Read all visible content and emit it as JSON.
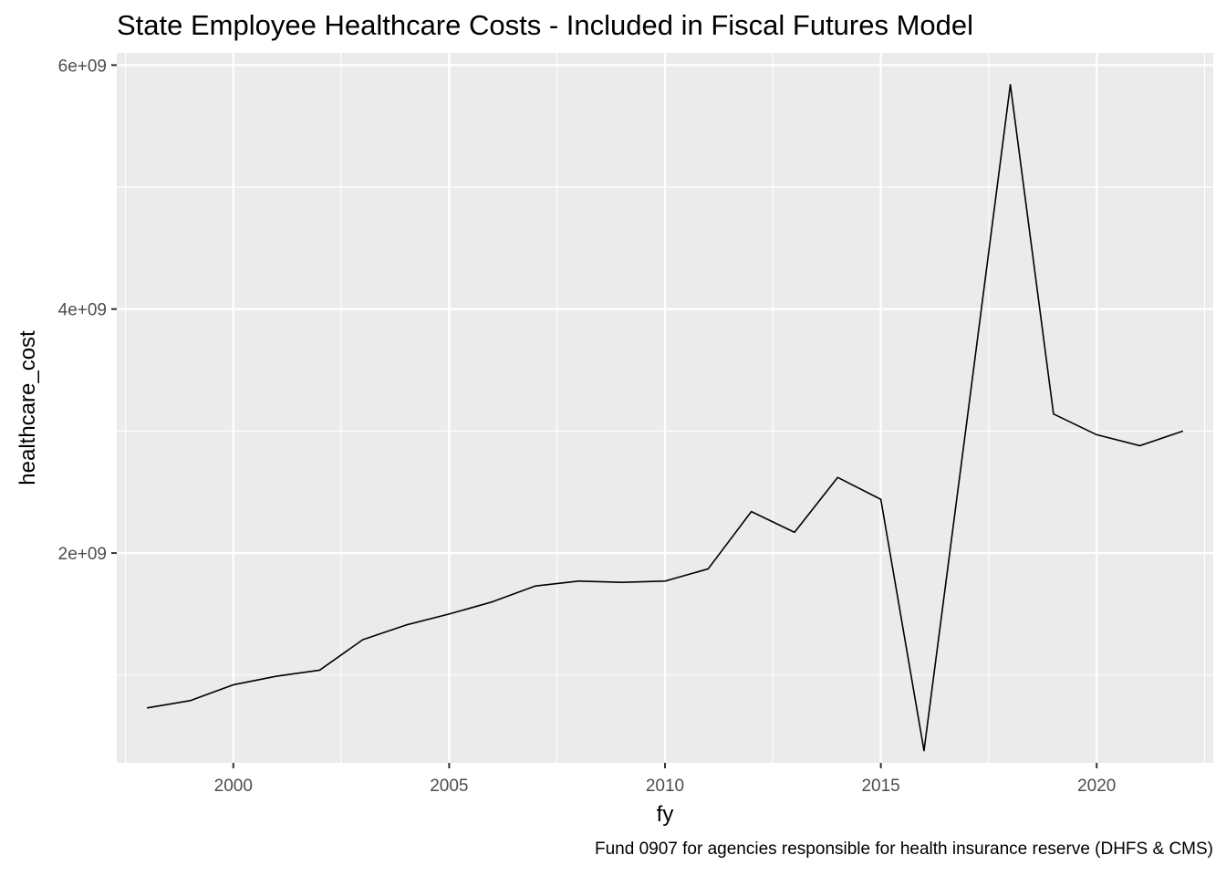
{
  "chart_data": {
    "type": "line",
    "title": "State Employee Healthcare Costs - Included in Fiscal Futures Model",
    "caption": "Fund 0907 for agencies responsible for health insurance reserve (DHFS & CMS)",
    "xlabel": "fy",
    "ylabel": "healthcare_cost",
    "xlim": [
      1997.3,
      2022.7
    ],
    "ylim": [
      280000000,
      6100000000
    ],
    "x_ticks": [
      2000,
      2005,
      2010,
      2015,
      2020
    ],
    "x_tick_labels": [
      "2000",
      "2005",
      "2010",
      "2015",
      "2020"
    ],
    "y_ticks": [
      2000000000,
      4000000000,
      6000000000
    ],
    "y_tick_labels": [
      "2e+09",
      "4e+09",
      "6e+09"
    ],
    "grid": true,
    "legend": "none",
    "colors": {
      "panel": "#EBEBEB",
      "grid": "#FFFFFF",
      "line": "#000000",
      "tick_text": "#4D4D4D"
    },
    "series": [
      {
        "x": [
          1998,
          1999,
          2000,
          2001,
          2002,
          2003,
          2004,
          2005,
          2006,
          2007,
          2008,
          2009,
          2010,
          2011,
          2012,
          2013,
          2014,
          2015,
          2016,
          2017,
          2018,
          2019,
          2020,
          2021,
          2022
        ],
        "values": [
          730000000,
          790000000,
          920000000,
          990000000,
          1040000000,
          1290000000,
          1410000000,
          1500000000,
          1600000000,
          1730000000,
          1770000000,
          1760000000,
          1770000000,
          1870000000,
          2340000000,
          2170000000,
          2620000000,
          2440000000,
          380000000,
          3100000000,
          5840000000,
          3140000000,
          2970000000,
          2880000000,
          3000000000
        ]
      }
    ]
  }
}
